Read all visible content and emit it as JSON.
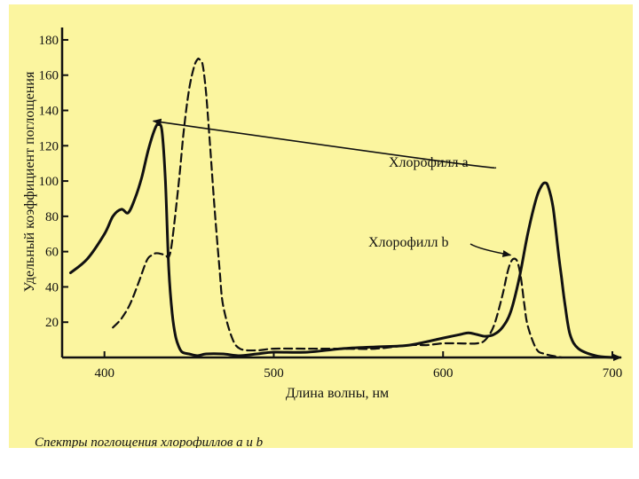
{
  "chart_data": {
    "type": "line",
    "title": "",
    "xlabel": "Длина волны, нм",
    "ylabel": "Удельный коэффициент поглощения",
    "xlim": [
      375,
      700
    ],
    "ylim": [
      0,
      185
    ],
    "x_ticks": [
      "400",
      "500",
      "600",
      "700"
    ],
    "y_ticks": [
      "20",
      "40",
      "60",
      "80",
      "100",
      "120",
      "140",
      "160",
      "180"
    ],
    "grid": false,
    "caption": "Спектры поглощения хлорофиллов a и b",
    "series": [
      {
        "name": "Хлорофилл a",
        "style": "solid",
        "x": [
          380,
          390,
          400,
          405,
          410,
          414,
          418,
          422,
          426,
          430,
          432,
          434,
          436,
          438,
          440,
          442,
          444,
          446,
          450,
          455,
          460,
          470,
          480,
          490,
          500,
          520,
          540,
          560,
          580,
          600,
          610,
          615,
          620,
          625,
          630,
          635,
          640,
          645,
          650,
          655,
          658,
          660,
          662,
          665,
          668,
          670,
          672,
          675,
          680,
          690,
          700
        ],
        "y": [
          48,
          56,
          70,
          80,
          84,
          82,
          90,
          102,
          118,
          130,
          132,
          128,
          100,
          50,
          25,
          12,
          6,
          3,
          2,
          1,
          2,
          2,
          1,
          2,
          3,
          3,
          5,
          6,
          7,
          11,
          13,
          14,
          13,
          12,
          13,
          17,
          26,
          45,
          70,
          90,
          97,
          99,
          97,
          85,
          60,
          45,
          30,
          13,
          5,
          1,
          0
        ]
      },
      {
        "name": "Хлорофилл b",
        "style": "dashed",
        "x": [
          405,
          410,
          415,
          420,
          425,
          428,
          430,
          432,
          436,
          438,
          440,
          444,
          447,
          450,
          453,
          455,
          456,
          458,
          460,
          462,
          465,
          468,
          470,
          475,
          480,
          490,
          500,
          520,
          540,
          560,
          580,
          590,
          600,
          610,
          620,
          625,
          630,
          635,
          638,
          640,
          642,
          644,
          646,
          648,
          650,
          655,
          660,
          670
        ],
        "y": [
          17,
          22,
          30,
          42,
          55,
          58,
          59,
          59,
          58,
          57,
          66,
          100,
          130,
          152,
          165,
          169,
          169,
          166,
          150,
          125,
          85,
          50,
          30,
          12,
          5,
          4,
          5,
          5,
          5,
          5,
          7,
          7,
          8,
          8,
          8,
          10,
          18,
          35,
          48,
          54,
          56,
          54,
          45,
          30,
          18,
          5,
          2,
          0
        ]
      }
    ]
  }
}
